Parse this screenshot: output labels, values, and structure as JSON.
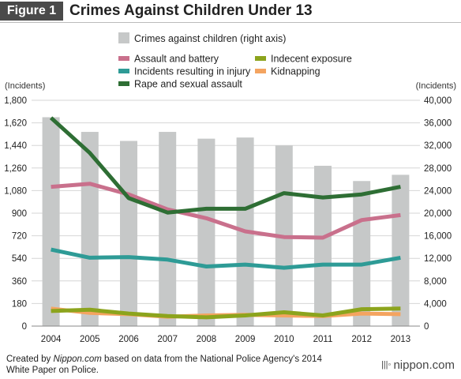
{
  "header": {
    "figure_label": "Figure 1",
    "title": "Crimes Against Children Under 13"
  },
  "footer": {
    "credit_prefix": "Created by ",
    "credit_site": "Nippon.com",
    "credit_suffix": " based on data from the National Police Agency's 2014",
    "credit_line2": "White Paper on Police.",
    "logo_text": "nippon.com"
  },
  "chart_data": {
    "type": "bar+line",
    "title": "Crimes Against Children Under 13",
    "categories": [
      "2004",
      "2005",
      "2006",
      "2007",
      "2008",
      "2009",
      "2010",
      "2011",
      "2012",
      "2013"
    ],
    "left_axis": {
      "unit_label": "(Incidents)",
      "ylim": [
        0,
        1800
      ],
      "ticks": [
        "0",
        "180",
        "360",
        "540",
        "720",
        "900",
        "1,080",
        "1,260",
        "1,440",
        "1,620",
        "1,800"
      ]
    },
    "right_axis": {
      "unit_label": "(Incidents)",
      "ylim": [
        0,
        40000
      ],
      "ticks": [
        "0",
        "4,000",
        "8,000",
        "12,000",
        "16,000",
        "20,000",
        "24,000",
        "28,000",
        "32,000",
        "36,000",
        "40,000"
      ]
    },
    "bars": {
      "name": "Crimes against children (right axis)",
      "color": "#c6c8c8",
      "values": [
        37000,
        34400,
        32800,
        34400,
        33200,
        33400,
        32000,
        28400,
        25700,
        26800
      ]
    },
    "lines": [
      {
        "name": "Assault and battery",
        "color": "#c9708c",
        "values": [
          1110,
          1135,
          1050,
          930,
          860,
          755,
          710,
          705,
          845,
          885
        ]
      },
      {
        "name": "Incidents resulting in injury",
        "color": "#2e9b96",
        "values": [
          610,
          545,
          550,
          530,
          475,
          490,
          465,
          490,
          490,
          545
        ]
      },
      {
        "name": "Rape and sexual assault",
        "color": "#2e6e34",
        "values": [
          1660,
          1380,
          1020,
          905,
          935,
          935,
          1060,
          1025,
          1050,
          1110
        ]
      },
      {
        "name": "Indecent exposure",
        "color": "#8ca41d",
        "values": [
          120,
          130,
          100,
          80,
          70,
          85,
          110,
          85,
          135,
          140
        ]
      },
      {
        "name": "Kidnapping",
        "color": "#f4a460",
        "values": [
          140,
          105,
          95,
          75,
          85,
          90,
          85,
          80,
          100,
          95
        ]
      }
    ],
    "legend_position": "top",
    "grid": "horizontal"
  }
}
